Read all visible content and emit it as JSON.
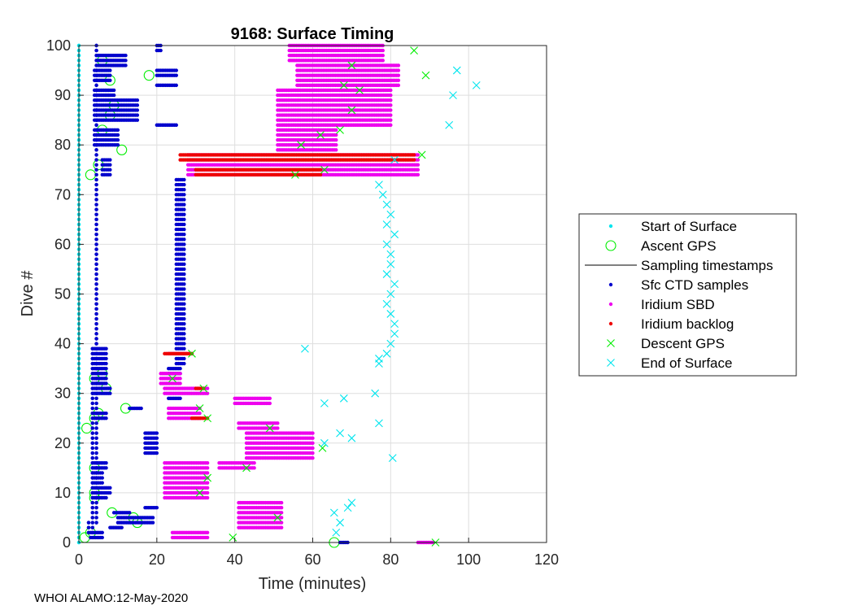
{
  "chart_data": {
    "type": "scatter",
    "title": "9168: Surface Timing",
    "xlabel": "Time (minutes)",
    "ylabel": "Dive #",
    "xlim": [
      0,
      120
    ],
    "ylim": [
      0,
      100
    ],
    "xticks": [
      0,
      20,
      40,
      60,
      80,
      100,
      120
    ],
    "yticks": [
      0,
      10,
      20,
      30,
      40,
      50,
      60,
      70,
      80,
      90,
      100
    ],
    "grid": true,
    "legend_position": "right",
    "series": [
      {
        "name": "Start of Surface",
        "marker": "dot",
        "color": "#00e5ee",
        "runs": [
          [
            0,
            100,
            0,
            0
          ]
        ],
        "points": []
      },
      {
        "name": "Ascent GPS",
        "marker": "circle",
        "color": "#00ee00",
        "runs": [],
        "points": [
          [
            65.5,
            0
          ],
          [
            1.5,
            1
          ],
          [
            3,
            2
          ],
          [
            8.5,
            6
          ],
          [
            15,
            4
          ],
          [
            14,
            5
          ],
          [
            4,
            9
          ],
          [
            4,
            10
          ],
          [
            4,
            15
          ],
          [
            2,
            23
          ],
          [
            4,
            25
          ],
          [
            5,
            26
          ],
          [
            12,
            27
          ],
          [
            7,
            31
          ],
          [
            4,
            33
          ],
          [
            6,
            34
          ],
          [
            3,
            74
          ],
          [
            5,
            76
          ],
          [
            11,
            79
          ],
          [
            6,
            83
          ],
          [
            8,
            86
          ],
          [
            9,
            88
          ],
          [
            8,
            93
          ],
          [
            18,
            94
          ],
          [
            6,
            97
          ]
        ]
      },
      {
        "name": "Sampling timestamps",
        "marker": "line",
        "color": "#000000",
        "runs": [],
        "points": []
      },
      {
        "name": "Sfc CTD samples",
        "marker": "dot",
        "color": "#0000cd",
        "runs": [
          [
            4,
            100,
            4.5,
            4.5
          ],
          [
            2,
            39,
            3.5,
            3.5
          ],
          [
            2,
            4,
            2.5,
            2.5
          ],
          [
            0,
            0,
            67,
            69
          ],
          [
            1,
            2,
            3,
            6
          ],
          [
            3,
            3,
            8,
            11
          ],
          [
            4,
            5,
            10,
            19
          ],
          [
            6,
            6,
            9,
            13
          ],
          [
            7,
            7,
            17,
            20
          ],
          [
            9,
            9,
            4,
            7
          ],
          [
            10,
            11,
            4,
            8
          ],
          [
            12,
            14,
            4,
            6
          ],
          [
            15,
            16,
            4,
            7
          ],
          [
            18,
            22,
            17,
            20
          ],
          [
            25,
            26,
            4,
            7
          ],
          [
            27,
            27,
            13,
            16
          ],
          [
            29,
            29,
            23,
            26
          ],
          [
            30,
            31,
            4,
            8
          ],
          [
            32,
            39,
            4,
            7
          ],
          [
            34,
            35,
            23,
            26
          ],
          [
            36,
            73,
            25,
            27
          ],
          [
            74,
            77,
            6,
            8
          ],
          [
            80,
            83,
            4,
            10
          ],
          [
            84,
            84,
            20,
            25
          ],
          [
            85,
            89,
            4,
            15
          ],
          [
            90,
            91,
            4,
            9
          ],
          [
            92,
            92,
            20,
            25
          ],
          [
            93,
            95,
            4,
            8
          ],
          [
            94,
            95,
            20,
            25
          ],
          [
            96,
            98,
            5,
            12
          ],
          [
            99,
            100,
            20,
            21
          ]
        ],
        "points": []
      },
      {
        "name": "Iridium SBD",
        "marker": "dot",
        "color": "#ee00ee",
        "runs": [
          [
            0,
            0,
            87,
            91
          ],
          [
            1,
            2,
            24,
            33
          ],
          [
            3,
            8,
            41,
            52
          ],
          [
            9,
            16,
            22,
            33
          ],
          [
            15,
            16,
            36,
            45
          ],
          [
            17,
            22,
            43,
            60
          ],
          [
            23,
            24,
            41,
            51
          ],
          [
            25,
            27,
            23,
            31
          ],
          [
            28,
            29,
            40,
            49
          ],
          [
            30,
            31,
            22,
            33
          ],
          [
            32,
            34,
            21,
            26
          ],
          [
            38,
            38,
            23,
            29
          ],
          [
            74,
            78,
            28,
            87
          ],
          [
            79,
            83,
            51,
            66
          ],
          [
            84,
            91,
            51,
            80
          ],
          [
            92,
            96,
            56,
            82
          ],
          [
            97,
            100,
            54,
            78
          ]
        ],
        "points": []
      },
      {
        "name": "Iridium backlog",
        "marker": "dot",
        "color": "#ee0000",
        "runs": [
          [
            25,
            25,
            29,
            33
          ],
          [
            31,
            31,
            30,
            32
          ],
          [
            38,
            38,
            22,
            29
          ],
          [
            74,
            75,
            30,
            62
          ],
          [
            77,
            78,
            26,
            86
          ]
        ],
        "points": []
      },
      {
        "name": "Descent GPS",
        "marker": "x",
        "color": "#00ee00",
        "runs": [],
        "points": [
          [
            91.5,
            0
          ],
          [
            39.5,
            1
          ],
          [
            51,
            5
          ],
          [
            31,
            10
          ],
          [
            33,
            13
          ],
          [
            43,
            15
          ],
          [
            62.5,
            19
          ],
          [
            49,
            23
          ],
          [
            33,
            25
          ],
          [
            31,
            27
          ],
          [
            32,
            31
          ],
          [
            24,
            33
          ],
          [
            29,
            38
          ],
          [
            55.5,
            74
          ],
          [
            63,
            75
          ],
          [
            88,
            78
          ],
          [
            57,
            80
          ],
          [
            62,
            82
          ],
          [
            67,
            83
          ],
          [
            70,
            87
          ],
          [
            72,
            91
          ],
          [
            68,
            92
          ],
          [
            89,
            94
          ],
          [
            70,
            96
          ],
          [
            86,
            99
          ]
        ]
      },
      {
        "name": "End of Surface",
        "marker": "x",
        "color": "#00e5ee",
        "runs": [],
        "points": [
          [
            66,
            2
          ],
          [
            67,
            4
          ],
          [
            65.5,
            6
          ],
          [
            69,
            7
          ],
          [
            70,
            8
          ],
          [
            80.5,
            17
          ],
          [
            63,
            20
          ],
          [
            70,
            21
          ],
          [
            67,
            22
          ],
          [
            77,
            24
          ],
          [
            63,
            28
          ],
          [
            68,
            29
          ],
          [
            76,
            30
          ],
          [
            58,
            39
          ],
          [
            77,
            36
          ],
          [
            77,
            37
          ],
          [
            79,
            38
          ],
          [
            80,
            40
          ],
          [
            81,
            42
          ],
          [
            81,
            44
          ],
          [
            80,
            46
          ],
          [
            79,
            48
          ],
          [
            80,
            50
          ],
          [
            81,
            52
          ],
          [
            79,
            54
          ],
          [
            80,
            56
          ],
          [
            80,
            58
          ],
          [
            79,
            60
          ],
          [
            81,
            62
          ],
          [
            79,
            64
          ],
          [
            80,
            66
          ],
          [
            79,
            68
          ],
          [
            78,
            70
          ],
          [
            77,
            72
          ],
          [
            81,
            77
          ],
          [
            95,
            84
          ],
          [
            96,
            90
          ],
          [
            102,
            92
          ],
          [
            97,
            95
          ]
        ]
      }
    ]
  },
  "footer": {
    "text": "WHOI ALAMO:12-May-2020"
  }
}
